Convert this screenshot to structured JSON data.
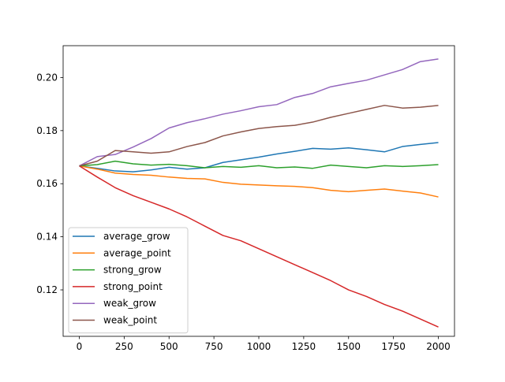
{
  "chart_data": {
    "type": "line",
    "title": "",
    "xlabel": "",
    "ylabel": "",
    "xlim": [
      -90,
      2090
    ],
    "ylim": [
      0.1025,
      0.212
    ],
    "xticks": [
      0,
      250,
      500,
      750,
      1000,
      1250,
      1500,
      1750,
      2000
    ],
    "yticks": [
      0.12,
      0.14,
      0.16,
      0.18,
      0.2
    ],
    "xtick_labels": [
      "0",
      "250",
      "500",
      "750",
      "1000",
      "1250",
      "1500",
      "1750",
      "2000"
    ],
    "ytick_labels": [
      "0.12",
      "0.14",
      "0.16",
      "0.18",
      "0.20"
    ],
    "grid": false,
    "legend_position": "lower-left",
    "x": [
      0,
      100,
      200,
      300,
      400,
      500,
      600,
      700,
      800,
      900,
      1000,
      1100,
      1200,
      1300,
      1400,
      1500,
      1600,
      1700,
      1800,
      1900,
      2000
    ],
    "series": [
      {
        "name": "average_grow",
        "color": "#1f77b4",
        "values": [
          0.1667,
          0.1658,
          0.1648,
          0.1645,
          0.1652,
          0.1662,
          0.1655,
          0.166,
          0.168,
          0.169,
          0.17,
          0.1712,
          0.1722,
          0.1733,
          0.173,
          0.1735,
          0.1728,
          0.172,
          0.174,
          0.1748,
          0.1755
        ]
      },
      {
        "name": "average_point",
        "color": "#ff7f0e",
        "values": [
          0.1667,
          0.1655,
          0.164,
          0.1635,
          0.1632,
          0.1625,
          0.162,
          0.1618,
          0.1605,
          0.1598,
          0.1595,
          0.1592,
          0.159,
          0.1585,
          0.1575,
          0.157,
          0.1575,
          0.158,
          0.1572,
          0.1565,
          0.155
        ]
      },
      {
        "name": "strong_grow",
        "color": "#2ca02c",
        "values": [
          0.1667,
          0.1672,
          0.1685,
          0.1675,
          0.167,
          0.1673,
          0.1668,
          0.166,
          0.1665,
          0.1662,
          0.1668,
          0.166,
          0.1663,
          0.1658,
          0.167,
          0.1665,
          0.166,
          0.1668,
          0.1665,
          0.1668,
          0.1672
        ]
      },
      {
        "name": "strong_point",
        "color": "#d62728",
        "values": [
          0.1667,
          0.1625,
          0.1585,
          0.1555,
          0.153,
          0.1505,
          0.1475,
          0.144,
          0.1405,
          0.1385,
          0.1355,
          0.1325,
          0.1295,
          0.1265,
          0.1235,
          0.12,
          0.1175,
          0.1145,
          0.112,
          0.109,
          0.106
        ]
      },
      {
        "name": "weak_grow",
        "color": "#9467bd",
        "values": [
          0.1667,
          0.1702,
          0.171,
          0.1738,
          0.177,
          0.181,
          0.183,
          0.1845,
          0.1862,
          0.1875,
          0.189,
          0.1898,
          0.1925,
          0.194,
          0.1965,
          0.1978,
          0.199,
          0.201,
          0.203,
          0.206,
          0.207
        ]
      },
      {
        "name": "weak_point",
        "color": "#8c564b",
        "values": [
          0.1667,
          0.1685,
          0.1725,
          0.172,
          0.1715,
          0.172,
          0.174,
          0.1755,
          0.178,
          0.1795,
          0.1808,
          0.1815,
          0.182,
          0.1832,
          0.185,
          0.1865,
          0.188,
          0.1895,
          0.1885,
          0.1888,
          0.1895
        ]
      }
    ]
  }
}
